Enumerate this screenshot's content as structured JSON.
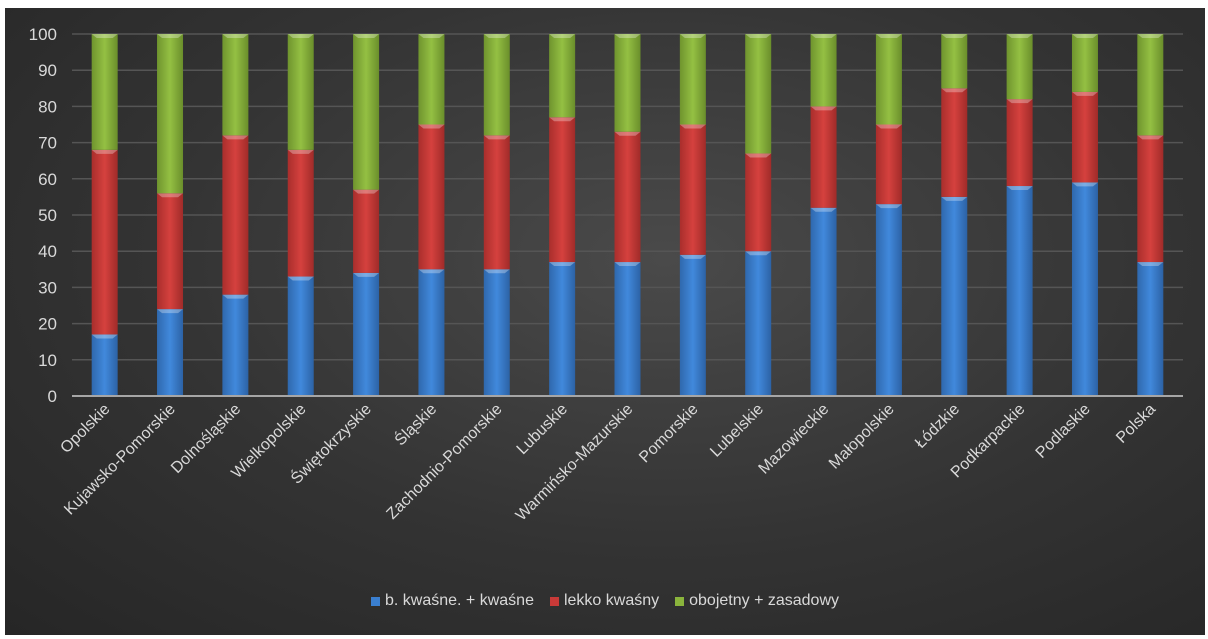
{
  "chart_data": {
    "type": "bar",
    "stacked": true,
    "title": "",
    "xlabel": "",
    "ylabel": "",
    "ylim": [
      0,
      100
    ],
    "yticks": [
      "0",
      "10",
      "20",
      "30",
      "40",
      "50",
      "60",
      "70",
      "80",
      "90",
      "100"
    ],
    "grid": true,
    "legend_position": "bottom",
    "categories": [
      "Opolskie",
      "Kujawsko-Pomorskie",
      "Dolnośląskie",
      "Wielkopolskie",
      "Świętokrzyskie",
      "Śląskie",
      "Zachodnio-Pomorskie",
      "Lubuskie",
      "Warmińsko-Mazurskie",
      "Pomorskie",
      "Lubelskie",
      "Mazowieckie",
      "Małopolskie",
      "Łódzkie",
      "Podkarpackie",
      "Podlaskie",
      "Polska"
    ],
    "series": [
      {
        "name": "b. kwaśne. + kwaśne",
        "color": "#3a7fd0",
        "values": [
          17,
          24,
          28,
          33,
          34,
          35,
          35,
          37,
          37,
          39,
          40,
          52,
          53,
          55,
          58,
          59,
          37
        ]
      },
      {
        "name": "lekko kwaśny",
        "color": "#c83a38",
        "values": [
          51,
          32,
          44,
          35,
          23,
          40,
          37,
          40,
          36,
          36,
          27,
          28,
          22,
          30,
          24,
          25,
          35
        ]
      },
      {
        "name": "obojetny + zasadowy",
        "color": "#8ab43c",
        "values": [
          32,
          44,
          28,
          32,
          43,
          25,
          28,
          23,
          27,
          25,
          33,
          20,
          25,
          15,
          18,
          16,
          28
        ]
      }
    ]
  }
}
